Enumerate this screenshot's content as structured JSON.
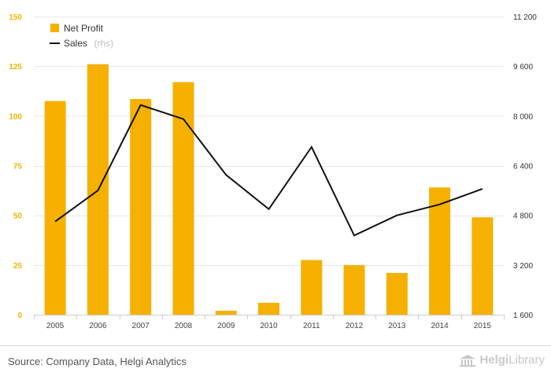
{
  "chart_data": {
    "type": "bar",
    "title": "",
    "xlabel": "",
    "ylabel": "",
    "categories": [
      "2005",
      "2006",
      "2007",
      "2008",
      "2009",
      "2010",
      "2011",
      "2012",
      "2013",
      "2014",
      "2015"
    ],
    "series": [
      {
        "name": "Net Profit",
        "type": "bar",
        "axis": "left",
        "color": "#f5b000",
        "values": [
          107.5,
          126,
          108.5,
          117,
          2,
          6,
          27.5,
          25,
          21,
          64,
          49
        ]
      },
      {
        "name": "Sales",
        "name_suffix": "(rhs)",
        "type": "line",
        "axis": "right",
        "color": "#111111",
        "values": [
          4600,
          5600,
          8350,
          7900,
          6100,
          5000,
          7000,
          4150,
          4800,
          5150,
          5650
        ]
      }
    ],
    "y_left": {
      "ylim": [
        0,
        150
      ],
      "ticks": [
        0,
        25,
        50,
        75,
        100,
        125,
        150
      ],
      "tick_labels": [
        "0",
        "25",
        "50",
        "75",
        "100",
        "125",
        "150"
      ]
    },
    "y_right": {
      "ylim": [
        1600,
        11200
      ],
      "ticks": [
        1600,
        3200,
        4800,
        6400,
        8000,
        9600,
        11200
      ],
      "tick_labels": [
        "1 600",
        "3 200",
        "4 800",
        "6 400",
        "8 000",
        "9 600",
        "11 200"
      ]
    },
    "grid": true,
    "legend_position": "top-left"
  },
  "footer": {
    "source": "Source: Company Data, Helgi Analytics",
    "logo_part1": "Helgi",
    "logo_part2": "Library"
  }
}
